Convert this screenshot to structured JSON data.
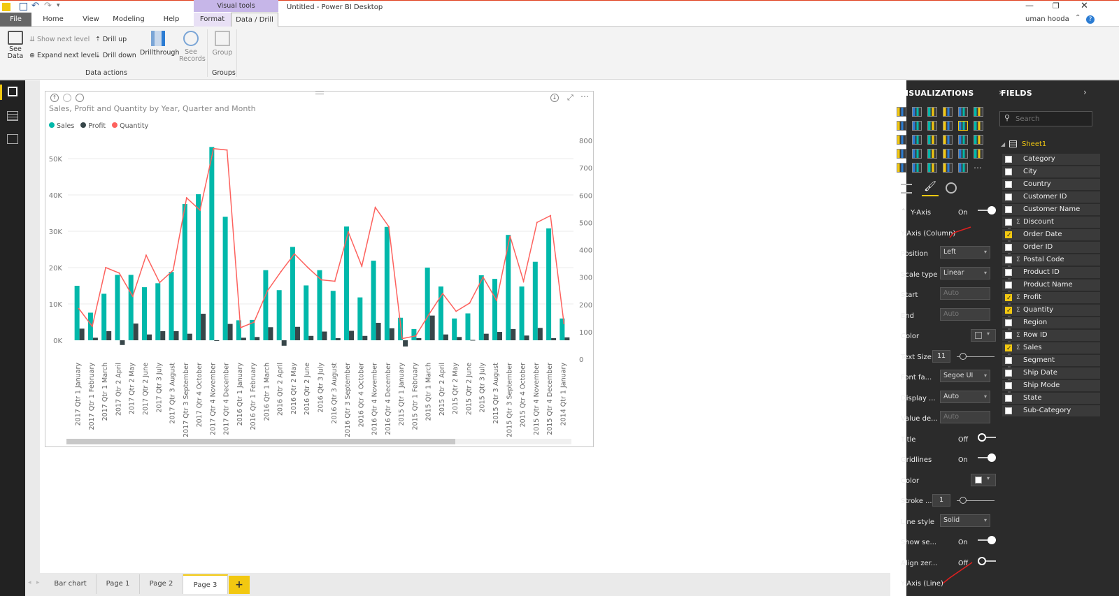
{
  "app": {
    "title": "Untitled - Power BI Desktop",
    "user": "uman hooda",
    "context_tab": "Visual tools"
  },
  "tabs": [
    "File",
    "Home",
    "View",
    "Modeling",
    "Help",
    "Format",
    "Data / Drill"
  ],
  "ribbon": {
    "see_data": "See Data",
    "show_next_level": "Show next level",
    "expand_next_level": "Expand next level",
    "drill_up": "Drill up",
    "drill_down": "Drill down",
    "drillthrough": "Drillthrough",
    "see_records": "See Records",
    "group": "Group",
    "group_data_actions": "Data actions",
    "group_groups": "Groups"
  },
  "pages": [
    "Bar chart",
    "Page 1",
    "Page 2",
    "Page 3"
  ],
  "add_page": "+",
  "visualizations": {
    "header": "VISUALIZATIONS",
    "rows": [
      {
        "type": "section",
        "label": "Y-Axis",
        "value": "On"
      },
      {
        "type": "heading",
        "label": "Y-Axis (Column)"
      },
      {
        "type": "select",
        "label": "Position",
        "value": "Left"
      },
      {
        "type": "select",
        "label": "Scale type",
        "value": "Linear"
      },
      {
        "type": "input",
        "label": "Start",
        "value": "Auto",
        "disabled": true
      },
      {
        "type": "input",
        "label": "End",
        "value": "Auto",
        "disabled": true
      },
      {
        "type": "color",
        "label": "Color"
      },
      {
        "type": "slider",
        "label": "Text Size",
        "value": "11"
      },
      {
        "type": "select",
        "label": "Font fa...",
        "value": "Segoe UI"
      },
      {
        "type": "select",
        "label": "Display ...",
        "value": "Auto"
      },
      {
        "type": "input",
        "label": "Value de...",
        "value": "Auto",
        "disabled": true
      },
      {
        "type": "toggle",
        "label": "Title",
        "value": "Off"
      },
      {
        "type": "toggle",
        "label": "Gridlines",
        "value": "On"
      },
      {
        "type": "color",
        "label": "Color"
      },
      {
        "type": "slider",
        "label": "Stroke ...",
        "value": "1"
      },
      {
        "type": "select",
        "label": "Line style",
        "value": "Solid"
      },
      {
        "type": "toggle",
        "label": "Show se...",
        "value": "On"
      },
      {
        "type": "toggle",
        "label": "Align zer...",
        "value": "Off"
      },
      {
        "type": "heading",
        "label": "Y-Axis (Line)"
      }
    ]
  },
  "fields": {
    "header": "FIELDS",
    "search_placeholder": "Search",
    "table": "Sheet1",
    "items": [
      {
        "name": "Category",
        "checked": false,
        "sigma": false
      },
      {
        "name": "City",
        "checked": false,
        "sigma": false
      },
      {
        "name": "Country",
        "checked": false,
        "sigma": false
      },
      {
        "name": "Customer ID",
        "checked": false,
        "sigma": false
      },
      {
        "name": "Customer Name",
        "checked": false,
        "sigma": false
      },
      {
        "name": "Discount",
        "checked": false,
        "sigma": true
      },
      {
        "name": "Order Date",
        "checked": true,
        "sigma": false
      },
      {
        "name": "Order ID",
        "checked": false,
        "sigma": false
      },
      {
        "name": "Postal Code",
        "checked": false,
        "sigma": true
      },
      {
        "name": "Product ID",
        "checked": false,
        "sigma": false
      },
      {
        "name": "Product Name",
        "checked": false,
        "sigma": false
      },
      {
        "name": "Profit",
        "checked": true,
        "sigma": true
      },
      {
        "name": "Quantity",
        "checked": true,
        "sigma": true
      },
      {
        "name": "Region",
        "checked": false,
        "sigma": false
      },
      {
        "name": "Row ID",
        "checked": false,
        "sigma": true
      },
      {
        "name": "Sales",
        "checked": true,
        "sigma": true
      },
      {
        "name": "Segment",
        "checked": false,
        "sigma": false
      },
      {
        "name": "Ship Date",
        "checked": false,
        "sigma": false
      },
      {
        "name": "Ship Mode",
        "checked": false,
        "sigma": false
      },
      {
        "name": "State",
        "checked": false,
        "sigma": false
      },
      {
        "name": "Sub-Category",
        "checked": false,
        "sigma": false
      }
    ]
  },
  "colors": {
    "sales": "#01b8aa",
    "profit": "#374649",
    "quantity": "#fd625e",
    "accent": "#f2c811"
  },
  "chart_data": {
    "type": "bar",
    "title": "Sales, Profit and Quantity by Year, Quarter and Month",
    "legend": [
      "Sales",
      "Profit",
      "Quantity"
    ],
    "legend_position": "top-left",
    "y_ticks": [
      "0K",
      "10K",
      "20K",
      "30K",
      "40K",
      "50K"
    ],
    "y2_ticks": [
      "0",
      "100",
      "200",
      "300",
      "400",
      "500",
      "600",
      "700",
      "800"
    ],
    "ylim": [
      0,
      55000
    ],
    "y2lim": [
      0,
      800
    ],
    "gridlines": true,
    "categories": [
      "2017 Qtr 1 January",
      "2017 Qtr 1 February",
      "2017 Qtr 1 March",
      "2017 Qtr 2 April",
      "2017 Qtr 2 May",
      "2017 Qtr 2 June",
      "2017 Qtr 3 July",
      "2017 Qtr 3 August",
      "2017 Qtr 3 September",
      "2017 Qtr 4 October",
      "2017 Qtr 4 November",
      "2017 Qtr 4 December",
      "2016 Qtr 1 January",
      "2016 Qtr 1 February",
      "2016 Qtr 1 March",
      "2016 Qtr 2 April",
      "2016 Qtr 2 May",
      "2016 Qtr 2 June",
      "2016 Qtr 3 July",
      "2016 Qtr 3 August",
      "2016 Qtr 3 September",
      "2016 Qtr 4 October",
      "2016 Qtr 4 November",
      "2016 Qtr 4 December",
      "2015 Qtr 1 January",
      "2015 Qtr 1 February",
      "2015 Qtr 1 March",
      "2015 Qtr 2 April",
      "2015 Qtr 2 May",
      "2015 Qtr 2 June",
      "2015 Qtr 3 July",
      "2015 Qtr 3 August",
      "2015 Qtr 3 September",
      "2015 Qtr 4 October",
      "2015 Qtr 4 November",
      "2015 Qtr 4 December",
      "2014 Qtr 1 January"
    ],
    "series": [
      {
        "name": "Sales",
        "values": [
          15000,
          7600,
          12800,
          18000,
          18000,
          14600,
          15700,
          18800,
          37500,
          40200,
          53200,
          34000,
          5500,
          5600,
          19300,
          13800,
          25700,
          15100,
          19300,
          13600,
          31300,
          11800,
          21900,
          31200,
          6200,
          3100,
          20000,
          14800,
          6000,
          7400,
          17900,
          16900,
          29000,
          14800,
          21600,
          30800,
          6000
        ]
      },
      {
        "name": "Profit",
        "values": [
          3200,
          700,
          2500,
          -1300,
          4600,
          1600,
          2500,
          2500,
          1800,
          7300,
          -200,
          4500,
          700,
          900,
          3600,
          -1500,
          3700,
          1200,
          2400,
          600,
          2600,
          1200,
          4800,
          3300,
          -1700,
          600,
          6800,
          1600,
          900,
          100,
          1800,
          2300,
          3100,
          1300,
          3400,
          600,
          800
        ]
      },
      {
        "name": "Quantity",
        "values": [
          185,
          120,
          335,
          315,
          230,
          380,
          280,
          325,
          590,
          545,
          770,
          765,
          115,
          135,
          250,
          320,
          385,
          335,
          290,
          285,
          465,
          340,
          555,
          485,
          75,
          85,
          165,
          240,
          175,
          205,
          300,
          215,
          450,
          285,
          500,
          525,
          130
        ]
      }
    ]
  }
}
